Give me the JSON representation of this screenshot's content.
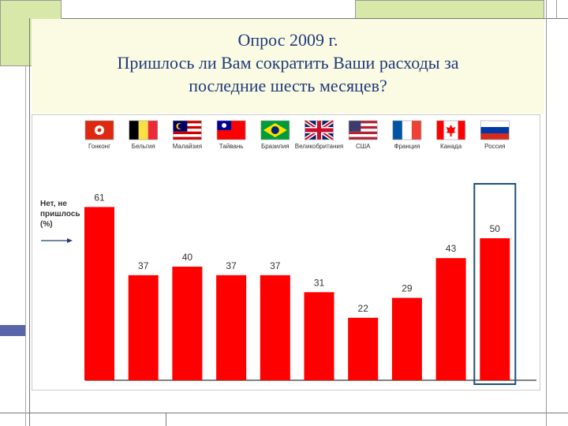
{
  "title_lines": [
    "Опрос 2009 г.",
    "Пришлось ли Вам сократить Ваши расходы за",
    "последние шесть месяцев?"
  ],
  "chart_data": {
    "type": "bar",
    "title": "Опрос 2009 г. Пришлось ли Вам сократить Ваши расходы за последние шесть месяцев?",
    "ylabel": "Нет, не пришлось (%)",
    "categories": [
      "Гонконг",
      "Бельгия",
      "Малайзия",
      "Тайвань",
      "Бразилия",
      "Великобритания",
      "США",
      "Франция",
      "Канада",
      "Россия"
    ],
    "values": [
      61,
      37,
      40,
      37,
      37,
      31,
      22,
      29,
      43,
      50
    ],
    "value_labels": [
      "61",
      "37",
      "40",
      "37",
      "37",
      "31",
      "22",
      "29",
      "43",
      "50"
    ],
    "ylim": [
      0,
      70
    ],
    "bar_color": "#ff0000",
    "highlight_category": "Россия",
    "highlight_color": "#1f4e79",
    "grid": false,
    "legend": "none"
  },
  "flags": [
    "hong-kong-flag-icon",
    "belgium-flag-icon",
    "malaysia-flag-icon",
    "taiwan-flag-icon",
    "brazil-flag-icon",
    "uk-flag-icon",
    "usa-flag-icon",
    "france-flag-icon",
    "canada-flag-icon",
    "russia-flag-icon"
  ]
}
